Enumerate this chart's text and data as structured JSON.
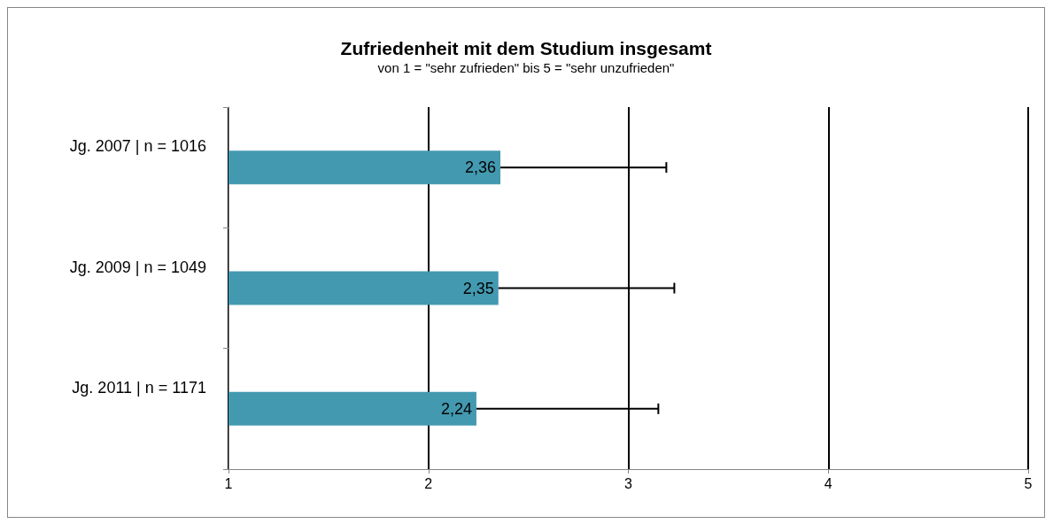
{
  "chart_data": {
    "type": "bar",
    "orientation": "horizontal",
    "title": "Zufriedenheit mit dem Studium insgesamt",
    "subtitle": "von 1 = \"sehr zufrieden\" bis 5 = \"sehr unzufrieden\"",
    "categories": [
      "Jg. 2007 | n = 1016",
      "Jg. 2009 | n = 1049",
      "Jg. 2011 | n = 1171"
    ],
    "values": [
      2.36,
      2.35,
      2.24
    ],
    "value_labels": [
      "2,36",
      "2,35",
      "2,24"
    ],
    "errors": [
      [
        2.36,
        3.19
      ],
      [
        2.35,
        3.23
      ],
      [
        2.24,
        3.15
      ]
    ],
    "color": "#4399b0",
    "xlim": [
      1,
      5
    ],
    "xticks": [
      1,
      2,
      3,
      4,
      5
    ],
    "grid": "x"
  }
}
